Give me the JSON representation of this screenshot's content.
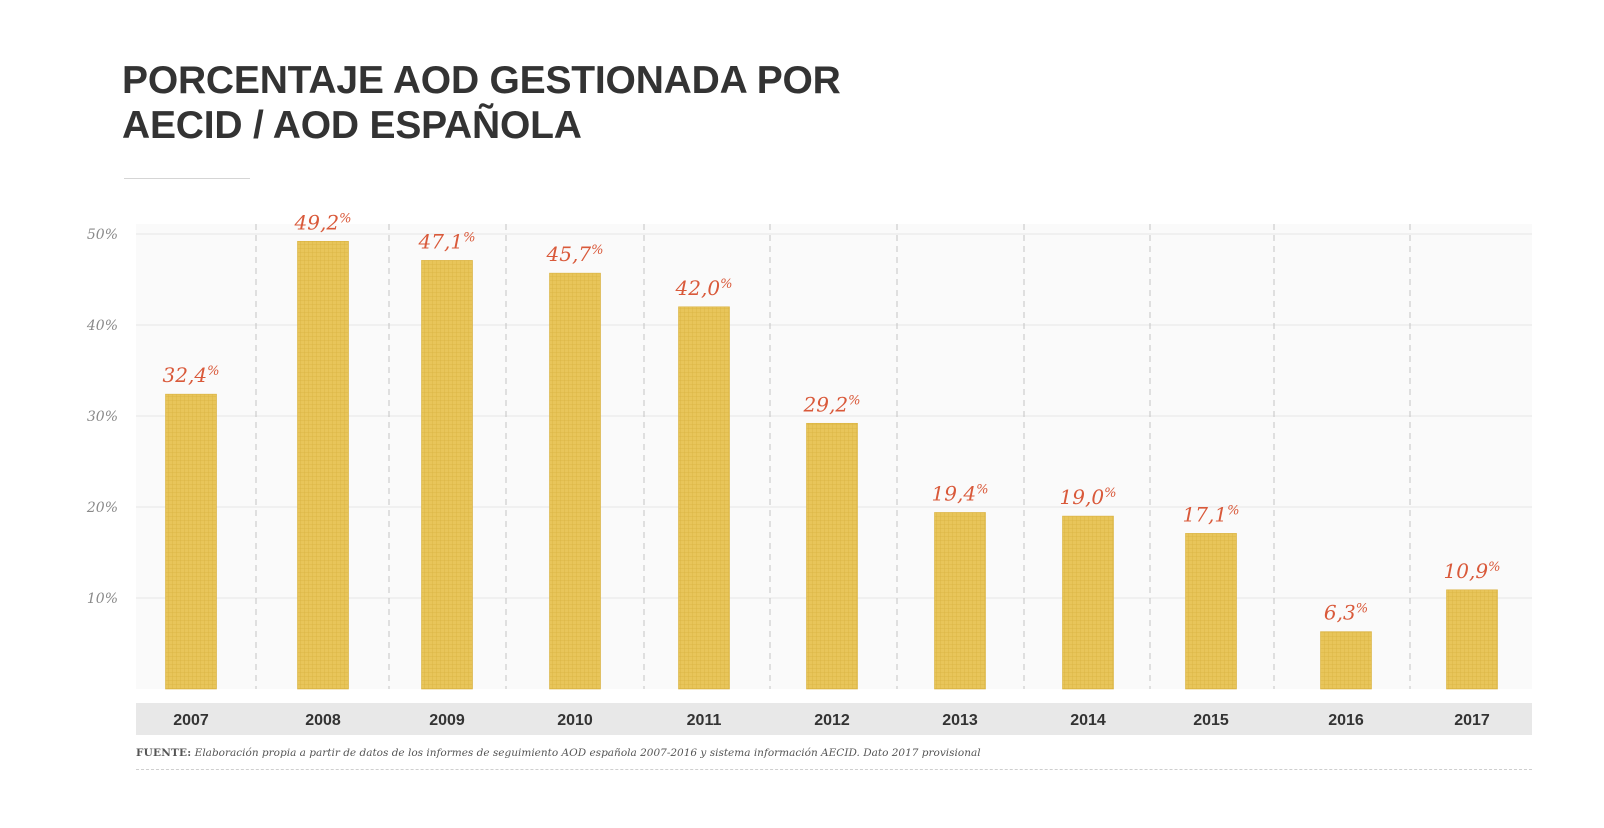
{
  "title": "PORCENTAJE AOD GESTIONADA POR AECID / AOD ESPAÑOLA",
  "title_line1": "PORCENTAJE AOD GESTIONADA POR",
  "title_line2": "AECID / AOD ESPAÑOLA",
  "source_label": "FUENTE:",
  "source_text": "Elaboración propia a partir de datos de los informes de seguimiento AOD española 2007-2016 y sistema información AECID. Dato 2017 provisional",
  "colors": {
    "bar": "#e8c55a",
    "bar_grid": "#d9b13f",
    "value_label": "#d9593a",
    "axis_text": "#8a8a8a",
    "category_band": "#e8e8e8",
    "title": "#333333"
  },
  "chart_data": {
    "type": "bar",
    "title": "PORCENTAJE AOD GESTIONADA POR AECID / AOD ESPAÑOLA",
    "xlabel": "",
    "ylabel": "",
    "categories": [
      "2007",
      "2008",
      "2009",
      "2010",
      "2011",
      "2012",
      "2013",
      "2014",
      "2015",
      "2016",
      "2017"
    ],
    "values": [
      32.4,
      49.2,
      47.1,
      45.7,
      42.0,
      29.2,
      19.4,
      19.0,
      17.1,
      6.3,
      10.9
    ],
    "value_labels": [
      "32,4",
      "49,2",
      "47,1",
      "45,7",
      "42,0",
      "29,2",
      "19,4",
      "19,0",
      "17,1",
      "6,3",
      "10,9"
    ],
    "value_suffix": "%",
    "ylim": [
      0,
      50
    ],
    "yticks": [
      10,
      20,
      30,
      40,
      50
    ],
    "ytick_labels": [
      "10%",
      "20%",
      "30%",
      "40%",
      "50%"
    ],
    "grid": true,
    "legend": "none"
  }
}
